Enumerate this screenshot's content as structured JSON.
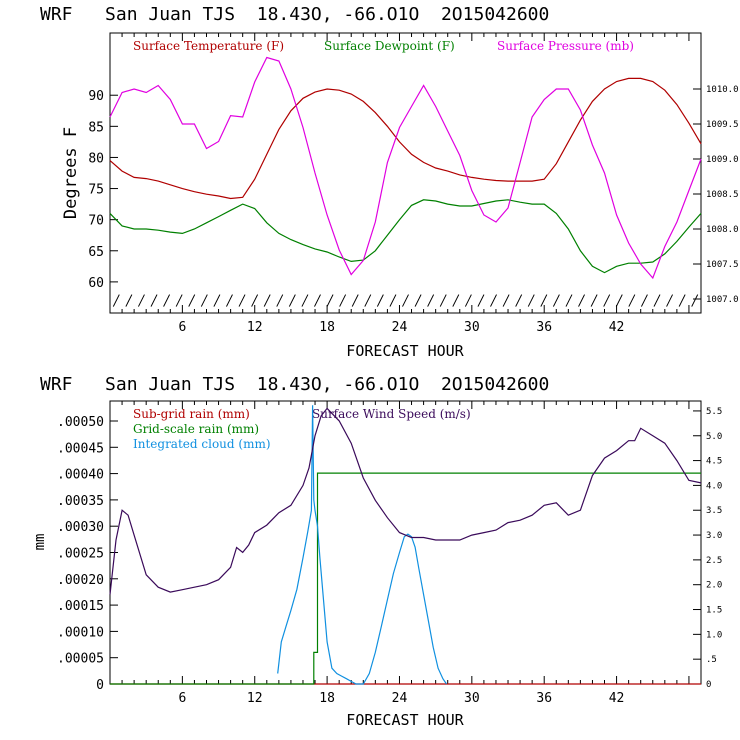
{
  "chart_data": [
    {
      "type": "line",
      "title": "WRF   San Juan TJS  18.43O, -66.O1O  2O15042600",
      "xlabel": "FORECAST HOUR",
      "ylabel": "Degrees F",
      "xlim": [
        0,
        49
      ],
      "ylim": [
        55,
        100
      ],
      "y2lim": [
        1006.8,
        1010.8
      ],
      "x_ticks": [
        6,
        12,
        18,
        24,
        30,
        36,
        42
      ],
      "x_tick_labels": [
        "6",
        "12",
        "18",
        "24",
        "30",
        "36",
        "42"
      ],
      "y_ticks": [
        60,
        65,
        70,
        75,
        80,
        85,
        90
      ],
      "y_tick_labels": [
        "60",
        "65",
        "70",
        "75",
        "80",
        "85",
        "90"
      ],
      "y2_ticks": [
        1007.0,
        1007.5,
        1008.0,
        1008.5,
        1009.0,
        1009.5,
        1010.0
      ],
      "y2_tick_labels": [
        "1007.0",
        "1007.5",
        "1008.0",
        "1008.5",
        "1009.0",
        "1009.5",
        "1010.0"
      ],
      "grid": false,
      "legend_position": "top",
      "series": [
        {
          "name": "Surface Temperature (F)",
          "color": "#b00000",
          "axis": "left",
          "x": [
            0,
            1,
            2,
            3,
            4,
            5,
            6,
            7,
            8,
            9,
            10,
            11,
            12,
            13,
            14,
            15,
            16,
            17,
            18,
            19,
            20,
            21,
            22,
            23,
            24,
            25,
            26,
            27,
            28,
            29,
            30,
            31,
            32,
            33,
            34,
            35,
            36,
            37,
            38,
            39,
            40,
            41,
            42,
            43,
            44,
            45,
            46,
            47,
            48,
            49
          ],
          "values": [
            79.5,
            77.8,
            76.8,
            76.6,
            76.2,
            75.6,
            75.0,
            74.5,
            74.1,
            73.8,
            73.4,
            73.6,
            76.5,
            80.5,
            84.5,
            87.5,
            89.5,
            90.5,
            91.0,
            90.8,
            90.2,
            89.0,
            87.2,
            85.0,
            82.5,
            80.5,
            79.2,
            78.3,
            77.8,
            77.2,
            76.8,
            76.5,
            76.3,
            76.2,
            76.2,
            76.2,
            76.5,
            79.0,
            82.5,
            86.0,
            89.0,
            91.0,
            92.2,
            92.7,
            92.7,
            92.2,
            90.8,
            88.5,
            85.5,
            82.2
          ]
        },
        {
          "name": "Surface Dewpoint (F)",
          "color": "#008000",
          "axis": "left",
          "x": [
            0,
            1,
            2,
            3,
            4,
            5,
            6,
            7,
            8,
            9,
            10,
            11,
            12,
            13,
            14,
            15,
            16,
            17,
            18,
            19,
            20,
            21,
            22,
            23,
            24,
            25,
            26,
            27,
            28,
            29,
            30,
            31,
            32,
            33,
            34,
            35,
            36,
            37,
            38,
            39,
            40,
            41,
            42,
            43,
            44,
            45,
            46,
            47,
            48,
            49
          ],
          "values": [
            71.0,
            69.0,
            68.5,
            68.5,
            68.3,
            68.0,
            67.8,
            68.5,
            69.5,
            70.5,
            71.5,
            72.5,
            71.8,
            69.5,
            67.8,
            66.8,
            66.0,
            65.3,
            64.8,
            64.0,
            63.3,
            63.5,
            65.0,
            67.5,
            70.0,
            72.3,
            73.2,
            73.0,
            72.5,
            72.2,
            72.2,
            72.6,
            73.0,
            73.2,
            72.8,
            72.5,
            72.5,
            71.0,
            68.5,
            65.0,
            62.5,
            61.5,
            62.5,
            63.0,
            63.0,
            63.2,
            64.5,
            66.5,
            68.8,
            71.0
          ]
        },
        {
          "name": "Surface Pressure (mb)",
          "color": "#e000e0",
          "axis": "right",
          "x": [
            0,
            1,
            2,
            3,
            4,
            5,
            6,
            7,
            8,
            9,
            10,
            11,
            12,
            13,
            14,
            15,
            16,
            17,
            18,
            19,
            20,
            21,
            22,
            23,
            24,
            25,
            26,
            27,
            28,
            29,
            30,
            31,
            32,
            33,
            34,
            35,
            36,
            37,
            38,
            39,
            40,
            41,
            42,
            43,
            44,
            45,
            46,
            47,
            48,
            49
          ],
          "values": [
            1009.6,
            1009.95,
            1010.0,
            1009.95,
            1010.05,
            1009.85,
            1009.5,
            1009.5,
            1009.15,
            1009.25,
            1009.62,
            1009.6,
            1010.1,
            1010.45,
            1010.4,
            1010.0,
            1009.45,
            1008.8,
            1008.2,
            1007.7,
            1007.35,
            1007.55,
            1008.1,
            1008.95,
            1009.45,
            1009.75,
            1010.05,
            1009.75,
            1009.4,
            1009.05,
            1008.55,
            1008.2,
            1008.1,
            1008.3,
            1008.95,
            1009.6,
            1009.85,
            1010.0,
            1010.0,
            1009.7,
            1009.2,
            1008.8,
            1008.2,
            1007.8,
            1007.5,
            1007.3,
            1007.75,
            1008.1,
            1008.55,
            1009.0
          ]
        }
      ],
      "wind_barbs_y": 57,
      "wind_barbs_count": 47
    },
    {
      "type": "line",
      "title": "WRF   San Juan TJS  18.43O, -66.O1O  2O15042600",
      "xlabel": "FORECAST HOUR",
      "ylabel": "mm",
      "xlim": [
        0,
        49
      ],
      "ylim": [
        0,
        0.000538
      ],
      "y2lim": [
        0,
        5.7
      ],
      "x_ticks": [
        6,
        12,
        18,
        24,
        30,
        36,
        42
      ],
      "x_tick_labels": [
        "6",
        "12",
        "18",
        "24",
        "30",
        "36",
        "42"
      ],
      "y_ticks": [
        0,
        5e-05,
        0.0001,
        0.00015,
        0.0002,
        0.00025,
        0.0003,
        0.00035,
        0.0004,
        0.00045,
        0.0005
      ],
      "y_tick_labels": [
        "0",
        ".00005",
        ".00010",
        ".00015",
        ".00020",
        ".00025",
        ".00030",
        ".00035",
        ".00040",
        ".00045",
        ".00050"
      ],
      "y2_ticks": [
        0,
        0.5,
        1.0,
        1.5,
        2.0,
        2.5,
        3.0,
        3.5,
        4.0,
        4.5,
        5.0,
        5.5
      ],
      "y2_tick_labels": [
        "0",
        ".5",
        "1.0",
        "1.5",
        "2.0",
        "2.5",
        "3.0",
        "3.5",
        "4.0",
        "4.5",
        "5.0",
        "5.5"
      ],
      "grid": false,
      "legend_position": "top-left",
      "series": [
        {
          "name": "Sub-grid rain (mm)",
          "color": "#b00000",
          "axis": "left",
          "x": [
            0,
            49
          ],
          "values": [
            0,
            0
          ]
        },
        {
          "name": "Grid-scale rain (mm)",
          "color": "#008000",
          "axis": "left",
          "x": [
            0,
            16.9,
            16.9,
            17.2,
            17.2,
            49
          ],
          "values": [
            0,
            0,
            6e-05,
            6e-05,
            0.000401,
            0.000401
          ]
        },
        {
          "name": "Integrated cloud (mm)",
          "color": "#1090e0",
          "axis": "left",
          "x": [
            13.9,
            14.2,
            14.6,
            15.0,
            15.5,
            16.0,
            16.4,
            16.7,
            16.8,
            16.9,
            17.0,
            17.2,
            17.4,
            17.7,
            18.0,
            18.4,
            18.8,
            19.2,
            19.6,
            20.0,
            20.4,
            21.0,
            21.5,
            22.0,
            22.5,
            23.0,
            23.5,
            24.0,
            24.4,
            24.7,
            25.0,
            25.3,
            25.6,
            26.0,
            26.4,
            26.8,
            27.2,
            27.6,
            27.9
          ],
          "values": [
            2e-05,
            8e-05,
            0.00011,
            0.00014,
            0.00018,
            0.00024,
            0.00029,
            0.00033,
            0.00053,
            0.00035,
            0.00033,
            0.0003,
            0.00024,
            0.00016,
            8e-05,
            3e-05,
            2e-05,
            1.5e-05,
            1e-05,
            5e-06,
            0.0,
            0.0,
            2e-05,
            6e-05,
            0.00011,
            0.00016,
            0.00021,
            0.00025,
            0.00028,
            0.000285,
            0.00028,
            0.00026,
            0.00022,
            0.00017,
            0.00012,
            7e-05,
            3e-05,
            1e-05,
            0.0
          ]
        },
        {
          "name": "Surface Wind Speed (m/s)",
          "color": "#3a0a5a",
          "axis": "right",
          "x": [
            0,
            0.5,
            1,
            1.5,
            2,
            3,
            4,
            5,
            6,
            7,
            8,
            9,
            10,
            10.5,
            11,
            11.5,
            12,
            13,
            14,
            15,
            16,
            16.5,
            17,
            17.5,
            18,
            19,
            20,
            21,
            22,
            23,
            24,
            25,
            26,
            27,
            28,
            29,
            30,
            31,
            32,
            33,
            34,
            35,
            36,
            37,
            38,
            39,
            40,
            41,
            42,
            43,
            43.5,
            44,
            45,
            46,
            47,
            48,
            49
          ],
          "values": [
            1.8,
            2.9,
            3.5,
            3.4,
            3.0,
            2.2,
            1.95,
            1.85,
            1.9,
            1.95,
            2.0,
            2.1,
            2.35,
            2.75,
            2.65,
            2.8,
            3.05,
            3.2,
            3.45,
            3.6,
            4.0,
            4.35,
            5.0,
            5.4,
            5.55,
            5.3,
            4.85,
            4.15,
            3.7,
            3.35,
            3.05,
            2.95,
            2.95,
            2.9,
            2.9,
            2.9,
            3.0,
            3.05,
            3.1,
            3.25,
            3.3,
            3.4,
            3.6,
            3.65,
            3.4,
            3.5,
            4.2,
            4.55,
            4.7,
            4.9,
            4.9,
            5.15,
            5.0,
            4.85,
            4.5,
            4.1,
            4.05
          ]
        }
      ]
    }
  ]
}
